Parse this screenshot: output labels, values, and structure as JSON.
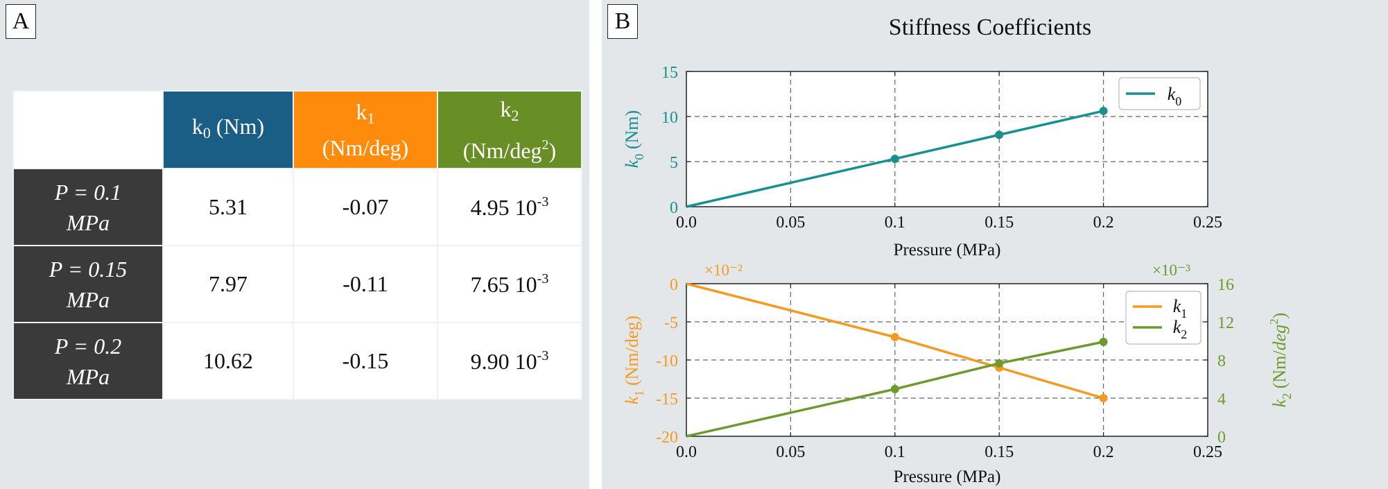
{
  "panel_a": {
    "label": "A",
    "columns": [
      {
        "symbol": "k",
        "sub": "0",
        "unit": "(Nm)",
        "unit_sup": ""
      },
      {
        "symbol": "k",
        "sub": "1",
        "unit": "(Nm/deg)",
        "unit_sup": ""
      },
      {
        "symbol": "k",
        "sub": "2",
        "unit": "(Nm/deg",
        "unit_sup": "2",
        "unit_close": ")"
      }
    ],
    "rows": [
      {
        "line1": "P = 0.1",
        "line2": "MPa",
        "k0": "5.31",
        "k1": "-0.07",
        "k2": "4.95 10",
        "k2_exp": "-3"
      },
      {
        "line1": "P = 0.15",
        "line2": "MPa",
        "k0": "7.97",
        "k1": "-0.11",
        "k2": "7.65 10",
        "k2_exp": "-3"
      },
      {
        "line1": "P = 0.2",
        "line2": "MPa",
        "k0": "10.62",
        "k1": "-0.15",
        "k2": "9.90 10",
        "k2_exp": "-3"
      }
    ]
  },
  "panel_b": {
    "label": "B",
    "title": "Stiffness Coefficients"
  },
  "colors": {
    "teal": "#17908f",
    "orange": "#f59a1e",
    "green": "#6c9a2c",
    "header_blue": "#1a5e85",
    "header_orange": "#ff8b0c",
    "header_green": "#688f26",
    "row_dark": "#3a3a3a"
  },
  "chart_data": [
    {
      "type": "line",
      "title": "Stiffness Coefficients",
      "xlabel": "Pressure (MPa)",
      "ylabel": "k_0 (Nm)",
      "xlim": [
        0,
        0.25
      ],
      "ylim": [
        0,
        15
      ],
      "xticks": [
        "0.0",
        "0.05",
        "0.1",
        "0.15",
        "0.2",
        "0.25"
      ],
      "xtick_values": [
        0,
        0.05,
        0.1,
        0.15,
        0.2,
        0.25
      ],
      "yticks": [
        "0",
        "5",
        "10",
        "15"
      ],
      "ytick_values": [
        0,
        5,
        10,
        15
      ],
      "legend_position": "top-right",
      "series": [
        {
          "name": "k_0",
          "color": "#17908f",
          "x": [
            0,
            0.1,
            0.15,
            0.2
          ],
          "y": [
            0,
            5.31,
            7.97,
            10.62
          ],
          "markers": [
            false,
            true,
            true,
            true
          ]
        }
      ]
    },
    {
      "type": "line",
      "xlabel": "Pressure (MPa)",
      "ylabel_left": "k_1 (Nm/deg)",
      "ylabel_right": "k_2 (Nm/deg^2)",
      "scale_left": "×10⁻²",
      "scale_right": "×10⁻³",
      "xlim": [
        0,
        0.25
      ],
      "ylim_left": [
        -20,
        0
      ],
      "ylim_right": [
        0,
        16
      ],
      "xticks": [
        "0.0",
        "0.05",
        "0.1",
        "0.15",
        "0.2",
        "0.25"
      ],
      "xtick_values": [
        0,
        0.05,
        0.1,
        0.15,
        0.2,
        0.25
      ],
      "yticks_left": [
        "0",
        "-5",
        "-10",
        "-15",
        "-20"
      ],
      "ytick_values_left": [
        0,
        -5,
        -10,
        -15,
        -20
      ],
      "yticks_right": [
        "16",
        "12",
        "8",
        "4",
        "0"
      ],
      "ytick_values_right": [
        16,
        12,
        8,
        4,
        0
      ],
      "legend_position": "top-right",
      "series": [
        {
          "name": "k_1",
          "axis": "left",
          "color": "#f59a1e",
          "x": [
            0,
            0.1,
            0.15,
            0.2
          ],
          "y": [
            0,
            -7,
            -11,
            -15
          ],
          "markers": [
            false,
            true,
            true,
            true
          ]
        },
        {
          "name": "k_2",
          "axis": "right",
          "color": "#6c9a2c",
          "x": [
            0,
            0.1,
            0.15,
            0.2
          ],
          "y": [
            0,
            4.95,
            7.65,
            9.9
          ],
          "markers": [
            false,
            true,
            true,
            true
          ]
        }
      ]
    }
  ]
}
